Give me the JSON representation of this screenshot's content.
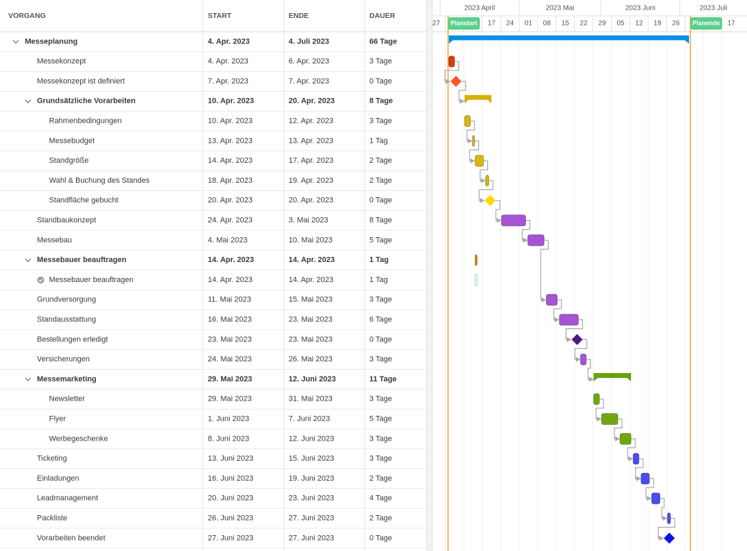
{
  "columns": [
    "VORGANG",
    "START",
    "ENDE",
    "DAUER"
  ],
  "timeline": {
    "months": [
      "2023 April",
      "2023 Mai",
      "2023 Juni",
      "2023 Juli"
    ],
    "weeks": [
      "27",
      null,
      null,
      "17",
      "24",
      "01",
      "08",
      "15",
      "22",
      "29",
      "05",
      "12",
      "19",
      "26",
      null,
      null,
      "17"
    ],
    "markers": [
      {
        "label": "Planstart",
        "color": "#5ccf8e"
      },
      {
        "label": "Planende",
        "color": "#5ccf8e"
      }
    ],
    "marker_line_color": "#f5a524"
  },
  "rows": [
    {
      "name": "Messeplanung",
      "start": "4. Apr. 2023",
      "end": "4. Juli 2023",
      "duration": "66 Tage",
      "level": 0,
      "summary": true,
      "color": "#0a8fe6"
    },
    {
      "name": "Messekonzept",
      "start": "4. Apr. 2023",
      "end": "6. Apr. 2023",
      "duration": "3 Tage",
      "level": 1,
      "color": "#d93a0e"
    },
    {
      "name": "Messekonzept ist definiert",
      "start": "7. Apr. 2023",
      "end": "7. Apr. 2023",
      "duration": "0 Tage",
      "level": 1,
      "color": "#ff5722"
    },
    {
      "name": "Grundsätzliche Vorarbeiten",
      "start": "10. Apr. 2023",
      "end": "20. Apr. 2023",
      "duration": "8 Tage",
      "level": 1,
      "summary": true,
      "color": "#d4b106"
    },
    {
      "name": "Rahmenbedingungen",
      "start": "10. Apr. 2023",
      "end": "12. Apr. 2023",
      "duration": "3 Tage",
      "level": 2,
      "color": "#d9b70a"
    },
    {
      "name": "Messebudget",
      "start": "13. Apr. 2023",
      "end": "13. Apr. 2023",
      "duration": "1 Tag",
      "level": 2,
      "color": "#d9b70a"
    },
    {
      "name": "Standgröße",
      "start": "14. Apr. 2023",
      "end": "17. Apr. 2023",
      "duration": "2 Tage",
      "level": 2,
      "color": "#d9b70a"
    },
    {
      "name": "Wahl & Buchung des Standes",
      "start": "18. Apr. 2023",
      "end": "19. Apr. 2023",
      "duration": "2 Tage",
      "level": 2,
      "color": "#d9b70a"
    },
    {
      "name": "Standfläche gebucht",
      "start": "20. Apr. 2023",
      "end": "20. Apr. 2023",
      "duration": "0 Tage",
      "level": 2,
      "color": "#ffd60a"
    },
    {
      "name": "Standbaukonzept",
      "start": "24. Apr. 2023",
      "end": "3. Mai 2023",
      "duration": "8 Tage",
      "level": 1,
      "color": "#a653d4"
    },
    {
      "name": "Messebau",
      "start": "4. Mai 2023",
      "end": "10. Mai 2023",
      "duration": "5 Tage",
      "level": 1,
      "color": "#a653d4"
    },
    {
      "name": "Messebauer beauftragen",
      "start": "14. Apr. 2023",
      "end": "14. Apr. 2023",
      "duration": "1 Tag",
      "level": 1,
      "summary": true,
      "color": "#e08600"
    },
    {
      "name": "Messebauer beauftragen",
      "start": "14. Apr. 2023",
      "end": "14. Apr. 2023",
      "duration": "1 Tag",
      "level": 2,
      "done": true,
      "color": "#7fd9a4"
    },
    {
      "name": "Grundversorgung",
      "start": "11. Mai 2023",
      "end": "15. Mai 2023",
      "duration": "3 Tage",
      "level": 1,
      "color": "#a653d4"
    },
    {
      "name": "Standausstattung",
      "start": "16. Mai 2023",
      "end": "23. Mai 2023",
      "duration": "6 Tage",
      "level": 1,
      "color": "#a653d4"
    },
    {
      "name": "Bestellungen erledigt",
      "start": "23. Mai 2023",
      "end": "23. Mai 2023",
      "duration": "0 Tage",
      "level": 1,
      "color": "#4b1a82"
    },
    {
      "name": "Versicherungen",
      "start": "24. Mai 2023",
      "end": "26. Mai 2023",
      "duration": "3 Tage",
      "level": 1,
      "color": "#a653d4"
    },
    {
      "name": "Messemarketing",
      "start": "29. Mai 2023",
      "end": "12. Juni 2023",
      "duration": "11 Tage",
      "level": 1,
      "summary": true,
      "color": "#6ba10f"
    },
    {
      "name": "Newsletter",
      "start": "29. Mai 2023",
      "end": "31. Mai 2023",
      "duration": "3 Tage",
      "level": 2,
      "color": "#72a80f"
    },
    {
      "name": "Flyer",
      "start": "1. Juni 2023",
      "end": "7. Juni 2023",
      "duration": "5 Tage",
      "level": 2,
      "color": "#72a80f"
    },
    {
      "name": "Werbegeschenke",
      "start": "8. Juni 2023",
      "end": "12. Juni 2023",
      "duration": "3 Tage",
      "level": 2,
      "color": "#72a80f"
    },
    {
      "name": "Ticketing",
      "start": "13. Juni 2023",
      "end": "15. Juni 2023",
      "duration": "3 Tage",
      "level": 1,
      "color": "#4c4cf0"
    },
    {
      "name": "Einladungen",
      "start": "16. Juni 2023",
      "end": "19. Juni 2023",
      "duration": "2 Tage",
      "level": 1,
      "color": "#4c4cf0"
    },
    {
      "name": "Leadmanagement",
      "start": "20. Juni 2023",
      "end": "23. Juni 2023",
      "duration": "4 Tage",
      "level": 1,
      "color": "#4c4cf0"
    },
    {
      "name": "Packliste",
      "start": "26. Juni 2023",
      "end": "27. Juni 2023",
      "duration": "2 Tage",
      "level": 1,
      "color": "#4c4cf0"
    },
    {
      "name": "Vorarbeiten beendet",
      "start": "27. Juni 2023",
      "end": "27. Juni 2023",
      "duration": "0 Tage",
      "level": 1,
      "color": "#1010e0"
    }
  ]
}
